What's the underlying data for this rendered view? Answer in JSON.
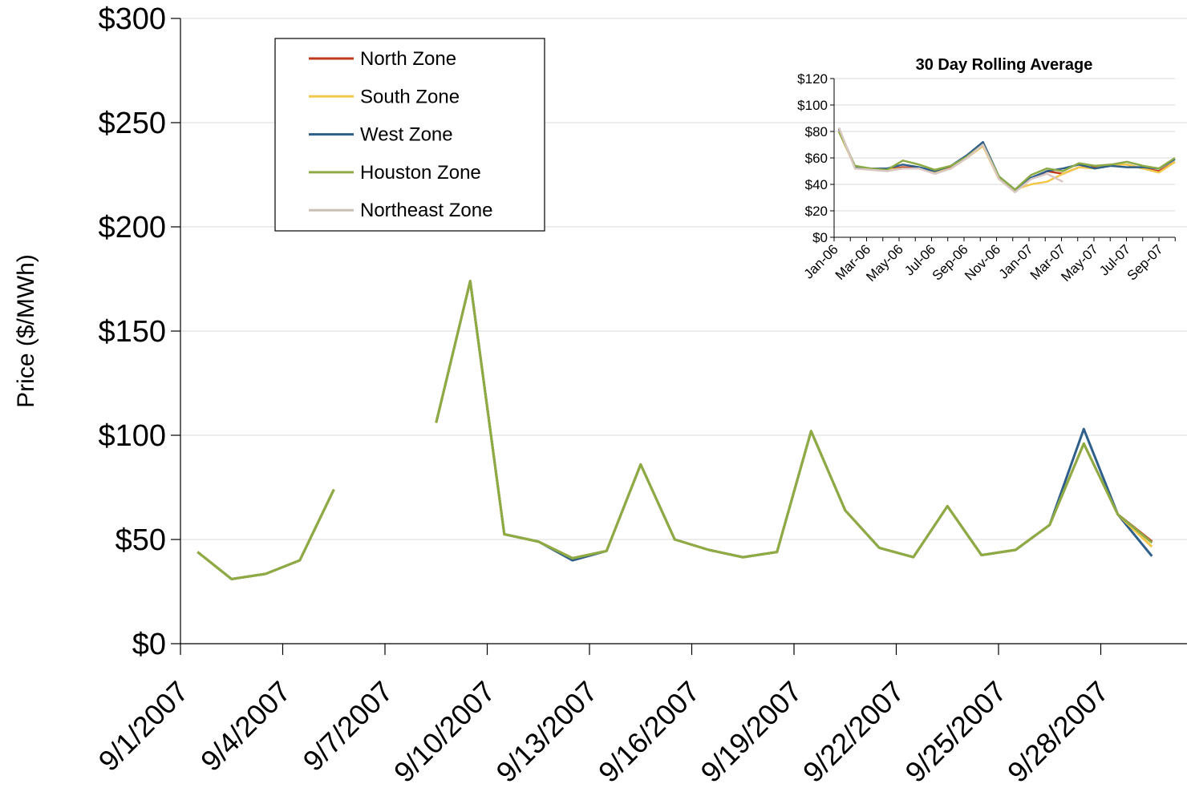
{
  "chart_data": [
    {
      "type": "line",
      "title": "",
      "ylabel": "Price ($/MWh)",
      "xlabel": "",
      "ylim": [
        0,
        300
      ],
      "yticks": [
        "$0",
        "$50",
        "$100",
        "$150",
        "$200",
        "$250",
        "$300"
      ],
      "x_tick_labels": [
        "9/1/2007",
        "9/4/2007",
        "9/7/2007",
        "9/10/2007",
        "9/13/2007",
        "9/16/2007",
        "9/19/2007",
        "9/22/2007",
        "9/25/2007",
        "9/28/2007"
      ],
      "x": [
        "9/1/2007",
        "9/2/2007",
        "9/3/2007",
        "9/4/2007",
        "9/5/2007",
        "9/6/2007",
        "9/7/2007",
        "9/8/2007",
        "9/9/2007",
        "9/10/2007",
        "9/11/2007",
        "9/12/2007",
        "9/13/2007",
        "9/14/2007",
        "9/15/2007",
        "9/16/2007",
        "9/17/2007",
        "9/18/2007",
        "9/19/2007",
        "9/20/2007",
        "9/21/2007",
        "9/22/2007",
        "9/23/2007",
        "9/24/2007",
        "9/25/2007",
        "9/26/2007",
        "9/27/2007",
        "9/28/2007",
        "9/29/2007",
        "9/30/2007"
      ],
      "grid": "horizontal",
      "legend_position": "top-left",
      "series": [
        {
          "name": "North Zone",
          "color": "#c0391b",
          "values": [
            44,
            31,
            33.5,
            40,
            74,
            null,
            null,
            106,
            174,
            52.5,
            49,
            41,
            44.5,
            86,
            50,
            45,
            41.5,
            44,
            102,
            64,
            46,
            41.5,
            66,
            42.5,
            45,
            57,
            96,
            62,
            49,
            null
          ]
        },
        {
          "name": "South Zone",
          "color": "#f2c84b",
          "values": [
            44,
            31,
            33.5,
            40,
            74,
            null,
            null,
            106,
            174,
            52.5,
            49,
            41,
            44.5,
            86,
            50,
            45,
            41.5,
            44,
            102,
            64,
            46,
            41.5,
            66,
            42.5,
            45,
            57,
            96,
            62,
            46.5,
            null
          ]
        },
        {
          "name": "West Zone",
          "color": "#2e5f8a",
          "values": [
            44,
            31,
            33.5,
            40,
            74,
            null,
            null,
            106,
            174,
            52.5,
            49,
            40,
            44.5,
            86,
            50,
            45,
            41.5,
            44,
            102,
            64,
            46,
            41.5,
            66,
            42.5,
            45,
            57,
            103,
            62,
            42,
            null
          ]
        },
        {
          "name": "Houston Zone",
          "color": "#8cab45",
          "values": [
            44,
            31,
            33.5,
            40,
            74,
            null,
            null,
            106,
            174,
            52.5,
            49,
            41,
            44.5,
            86,
            50,
            45,
            41.5,
            44,
            102,
            64,
            46,
            41.5,
            66,
            42.5,
            45,
            57,
            96,
            62,
            48.5,
            null
          ]
        },
        {
          "name": "Northeast Zone",
          "color": "#c9bfb2",
          "values": [
            44,
            31,
            33.5,
            40,
            74,
            null,
            null,
            106,
            174,
            52.5,
            49,
            41,
            44.5,
            86,
            50,
            45,
            41.5,
            44,
            102,
            64,
            46,
            41.5,
            66,
            42.5,
            45,
            57,
            96,
            62,
            48.5,
            null
          ]
        }
      ]
    },
    {
      "type": "line",
      "title": "30 Day Rolling Average",
      "ylim": [
        0,
        120
      ],
      "yticks": [
        "$0",
        "$20",
        "$40",
        "$60",
        "$80",
        "$100",
        "$120"
      ],
      "x_tick_labels": [
        "Jan-06",
        "Mar-06",
        "May-06",
        "Jul-06",
        "Sep-06",
        "Nov-06",
        "Jan-07",
        "Mar-07",
        "May-07",
        "Jul-07",
        "Sep-07"
      ],
      "x": [
        "Jan-06",
        "Feb-06",
        "Mar-06",
        "Apr-06",
        "May-06",
        "Jun-06",
        "Jul-06",
        "Aug-06",
        "Sep-06",
        "Oct-06",
        "Nov-06",
        "Dec-06",
        "Jan-07",
        "Feb-07",
        "Mar-07",
        "Apr-07",
        "May-07",
        "Jun-07",
        "Jul-07",
        "Aug-07",
        "Sep-07",
        "Oct-07"
      ],
      "grid": "horizontal",
      "series": [
        {
          "name": "North Zone",
          "color": "#c0391b",
          "values": [
            82,
            53,
            52,
            51,
            53,
            52,
            50,
            53,
            60,
            70,
            45,
            36,
            44,
            50,
            48,
            53,
            53,
            55,
            55,
            52,
            50,
            57
          ]
        },
        {
          "name": "South Zone",
          "color": "#f2c84b",
          "values": [
            80,
            53,
            51,
            51,
            52,
            52,
            49,
            52,
            60,
            69,
            44,
            36,
            40,
            42,
            48,
            53,
            52,
            55,
            55,
            52,
            49,
            57
          ]
        },
        {
          "name": "West Zone",
          "color": "#2e5f8a",
          "values": [
            82,
            53,
            52,
            52,
            55,
            53,
            50,
            54,
            62,
            72,
            46,
            36,
            45,
            50,
            52,
            55,
            52,
            54,
            53,
            53,
            52,
            59
          ]
        },
        {
          "name": "Houston Zone",
          "color": "#8cab45",
          "values": [
            80,
            54,
            52,
            51,
            58,
            55,
            51,
            54,
            61,
            70,
            46,
            36,
            47,
            52,
            50,
            56,
            54,
            55,
            57,
            54,
            52,
            60
          ]
        },
        {
          "name": "Northeast Zone",
          "color": "#d9c7c4",
          "values": [
            83,
            52,
            51,
            50,
            52,
            52,
            48,
            52,
            60,
            70,
            44,
            34,
            44,
            48,
            42,
            null,
            null,
            null,
            null,
            null,
            null,
            null
          ]
        }
      ]
    }
  ]
}
